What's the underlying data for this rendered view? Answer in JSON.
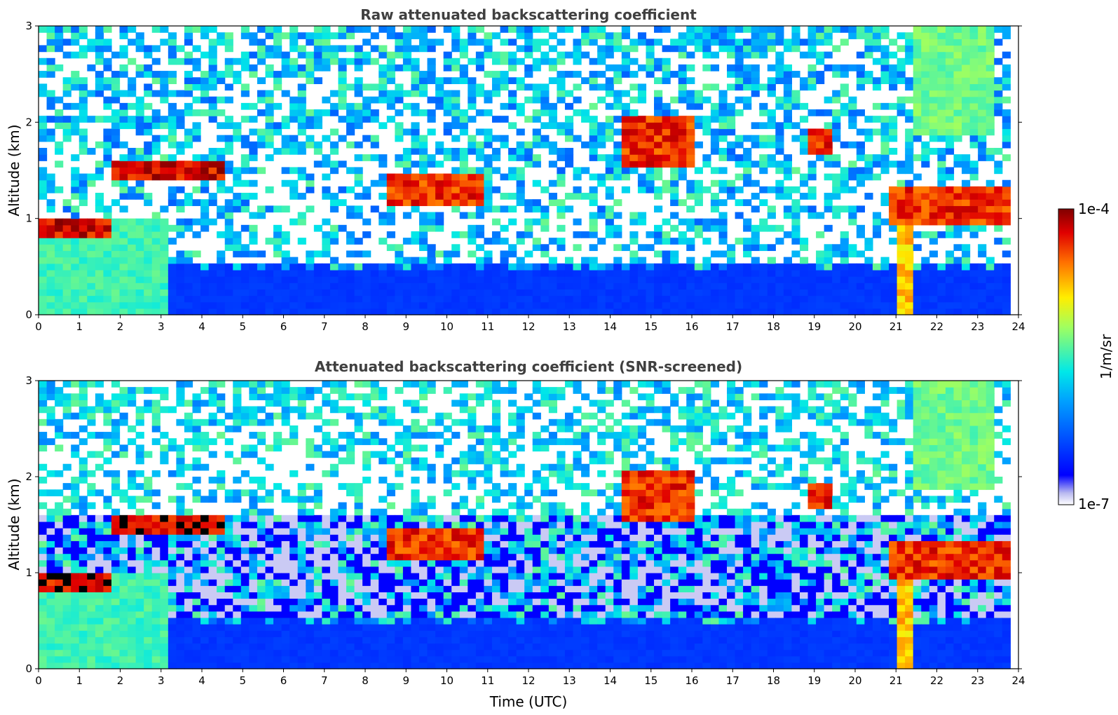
{
  "chart_data": [
    {
      "type": "heatmap",
      "title": "Raw attenuated backscattering coefficient",
      "xlabel": "",
      "ylabel": "Altitude (km)",
      "xlim": [
        0,
        24
      ],
      "ylim": [
        0,
        3
      ],
      "xticks": [
        "0",
        "1",
        "2",
        "3",
        "4",
        "5",
        "6",
        "7",
        "8",
        "9",
        "10",
        "11",
        "12",
        "13",
        "14",
        "15",
        "16",
        "17",
        "18",
        "19",
        "20",
        "21",
        "22",
        "23",
        "24"
      ],
      "yticks": [
        "0",
        "1",
        "2",
        "3"
      ],
      "data_end_time": 23.8,
      "features": [
        {
          "name": "boundary layer aerosol",
          "t": [
            0,
            23.8
          ],
          "alt": [
            0,
            0.5
          ],
          "level": 0.2
        },
        {
          "name": "dense low aerosol",
          "t": [
            0,
            3.2
          ],
          "alt": [
            0,
            1.0
          ],
          "level": 0.55
        },
        {
          "name": "cloud layer",
          "t": [
            0,
            1.8
          ],
          "alt": [
            0.8,
            1.0
          ],
          "level": 1.0
        },
        {
          "name": "cloud layer",
          "t": [
            1.8,
            4.6
          ],
          "alt": [
            1.4,
            1.6
          ],
          "level": 1.0
        },
        {
          "name": "cloud layer",
          "t": [
            8.6,
            11.0
          ],
          "alt": [
            1.15,
            1.45
          ],
          "level": 0.95
        },
        {
          "name": "cloud layer",
          "t": [
            14.3,
            16.1
          ],
          "alt": [
            1.55,
            2.05
          ],
          "level": 0.95
        },
        {
          "name": "cloud layer",
          "t": [
            18.9,
            19.4
          ],
          "alt": [
            1.65,
            1.9
          ],
          "level": 0.95
        },
        {
          "name": "cloud layer",
          "t": [
            20.8,
            23.8
          ],
          "alt": [
            0.95,
            1.3
          ],
          "level": 0.95
        },
        {
          "name": "precipitation fall streak",
          "t": [
            21.0,
            21.4
          ],
          "alt": [
            0,
            1.3
          ],
          "level": 0.8
        },
        {
          "name": "virga",
          "t": [
            21.5,
            23.5
          ],
          "alt": [
            1.9,
            3.0
          ],
          "level": 0.6
        }
      ]
    },
    {
      "type": "heatmap",
      "title": "Attenuated backscattering coefficient (SNR-screened)",
      "xlabel": "Time (UTC)",
      "ylabel": "Altitude (km)",
      "xlim": [
        0,
        24
      ],
      "ylim": [
        0,
        3
      ],
      "xticks": [
        "0",
        "1",
        "2",
        "3",
        "4",
        "5",
        "6",
        "7",
        "8",
        "9",
        "10",
        "11",
        "12",
        "13",
        "14",
        "15",
        "16",
        "17",
        "18",
        "19",
        "20",
        "21",
        "22",
        "23",
        "24"
      ],
      "yticks": [
        "0",
        "1",
        "2",
        "3"
      ],
      "data_end_time": 23.8,
      "screened": true
    }
  ],
  "colorbar": {
    "label": "1/m/sr",
    "max_label": "1e-4",
    "min_label": "1e-7",
    "scale": "log",
    "colormap": "jet"
  }
}
